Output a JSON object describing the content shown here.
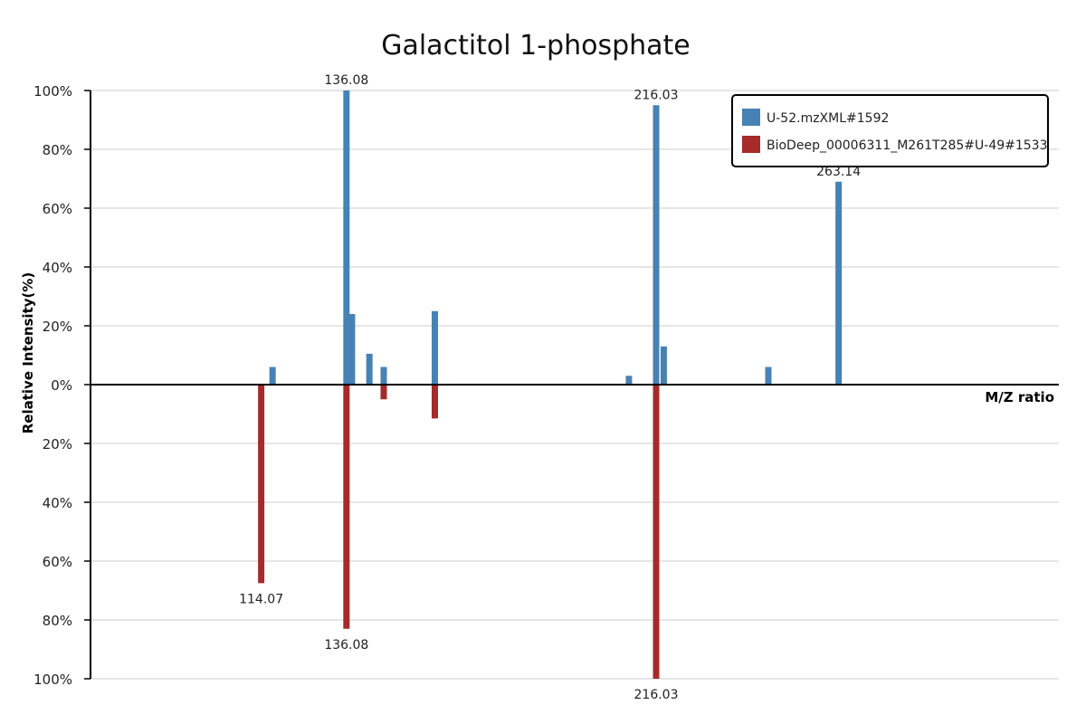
{
  "chart_data": {
    "type": "bar",
    "title": "Galactitol 1-phosphate",
    "xlabel": "M/Z ratio",
    "ylabel": "Relative Intensity(%)",
    "yticks_top": [
      "100%",
      "80%",
      "60%",
      "40%",
      "20%",
      "0%"
    ],
    "yticks_bottom": [
      "20%",
      "40%",
      "60%",
      "80%",
      "100%"
    ],
    "ylim": [
      -100,
      100
    ],
    "xlim": [
      70,
      320
    ],
    "grid": true,
    "legend_position": "top-right",
    "series": [
      {
        "name": "U-52.mzXML#1592",
        "color": "#4682b4",
        "direction": "up",
        "peaks": [
          {
            "mz": 117.0,
            "intensity": 6
          },
          {
            "mz": 136.08,
            "intensity": 100,
            "label": "136.08"
          },
          {
            "mz": 137.5,
            "intensity": 24
          },
          {
            "mz": 142.0,
            "intensity": 10.5
          },
          {
            "mz": 145.7,
            "intensity": 6
          },
          {
            "mz": 158.9,
            "intensity": 25
          },
          {
            "mz": 209.0,
            "intensity": 3
          },
          {
            "mz": 216.03,
            "intensity": 95,
            "label": "216.03"
          },
          {
            "mz": 218.0,
            "intensity": 13
          },
          {
            "mz": 245.0,
            "intensity": 6
          },
          {
            "mz": 263.14,
            "intensity": 69,
            "label": "263.14"
          }
        ]
      },
      {
        "name": "BioDeep_00006311_M261T285#U-49#1533",
        "color": "#a52a2a",
        "direction": "down",
        "peaks": [
          {
            "mz": 114.07,
            "intensity": 67.5,
            "label": "114.07"
          },
          {
            "mz": 136.08,
            "intensity": 83,
            "label": "136.08"
          },
          {
            "mz": 145.7,
            "intensity": 5
          },
          {
            "mz": 158.9,
            "intensity": 11.5
          },
          {
            "mz": 216.03,
            "intensity": 100,
            "label": "216.03"
          }
        ]
      }
    ]
  }
}
